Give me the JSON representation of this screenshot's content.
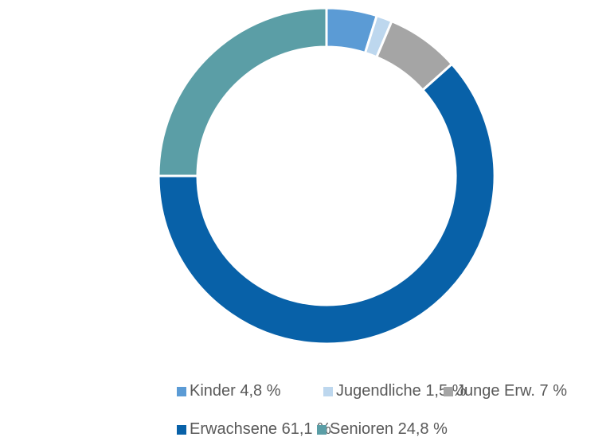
{
  "chart_data": {
    "type": "donut",
    "categories": [
      "Kinder",
      "Jugendliche",
      "Junge Erw.",
      "Erwachsene",
      "Senioren"
    ],
    "values": [
      4.8,
      1.5,
      7,
      61.1,
      24.8
    ],
    "value_labels": [
      "4,8 %",
      "1,5 %",
      "7 %",
      "61,1 %",
      "24,8 %"
    ],
    "colors": [
      "#5b9bd5",
      "#bdd7ee",
      "#a5a5a5",
      "#0861a8",
      "#5b9ea6"
    ],
    "legend": "bottom"
  }
}
